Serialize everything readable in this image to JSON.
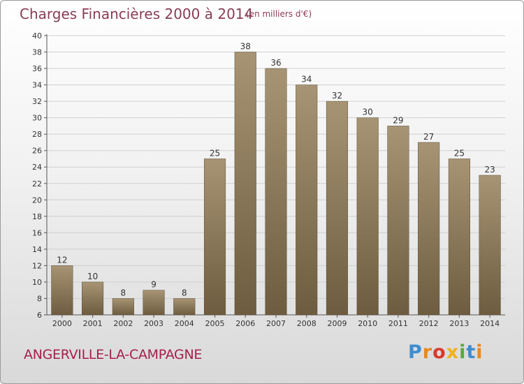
{
  "header": {
    "title": "Charges Financières 2000 à 2014",
    "subtitle": "(en milliers d'€)"
  },
  "footer": {
    "commune": "ANGERVILLE-LA-CAMPAGNE",
    "logo": {
      "letters": [
        "P",
        "r",
        "o",
        "x",
        "i",
        "t",
        "i"
      ]
    }
  },
  "colors": {
    "bar_top": "#a69474",
    "bar_bottom": "#6e5c40",
    "title": "#8a3b58",
    "commune": "#a4204a"
  },
  "chart_data": {
    "type": "bar",
    "title": "Charges Financières 2000 à 2014",
    "subtitle": "(en milliers d'€)",
    "xlabel": "",
    "ylabel": "",
    "categories": [
      "2000",
      "2001",
      "2002",
      "2003",
      "2004",
      "2005",
      "2006",
      "2007",
      "2008",
      "2009",
      "2010",
      "2011",
      "2012",
      "2013",
      "2014"
    ],
    "values": [
      12,
      10,
      8,
      9,
      8,
      25,
      38,
      36,
      34,
      32,
      30,
      29,
      27,
      25,
      23
    ],
    "ylim": [
      6,
      40
    ],
    "yticks": [
      6,
      8,
      10,
      12,
      14,
      16,
      18,
      20,
      22,
      24,
      26,
      28,
      30,
      32,
      34,
      36,
      38,
      40
    ],
    "grid": true,
    "legend": "none"
  }
}
